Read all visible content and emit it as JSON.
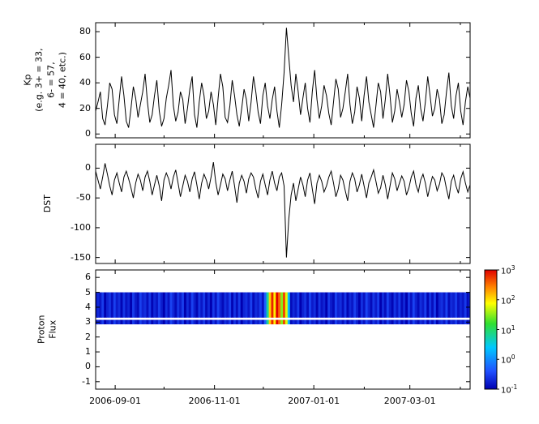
{
  "figure": {
    "background": "#ffffff",
    "axis_color": "#000000",
    "line_color": "#000000",
    "x_axis": {
      "start_day": 0,
      "end_day": 230,
      "start_date": "2006-08-20",
      "end_date": "2007-04-07",
      "tick_days": [
        12,
        73,
        134,
        193
      ],
      "tick_labels": [
        "2006-09-01",
        "2006-11-01",
        "2007-01-01",
        "2007-03-01"
      ],
      "minor_tick_days": [
        42,
        103,
        165,
        224
      ]
    },
    "colormap": {
      "name": "rainbow-jet",
      "stops": [
        [
          0,
          "#0000b0"
        ],
        [
          0.15,
          "#2050ff"
        ],
        [
          0.35,
          "#00c8ff"
        ],
        [
          0.55,
          "#30e030"
        ],
        [
          0.72,
          "#ffff00"
        ],
        [
          0.86,
          "#ff8000"
        ],
        [
          1,
          "#e00000"
        ]
      ]
    }
  },
  "chart_data": [
    {
      "type": "line",
      "name": "kp-index",
      "ylabel": "Kp\n(e.g. 3+ = 33,\n6- = 57,\n4 = 40, etc.)",
      "ylim": [
        -3,
        87
      ],
      "yticks": [
        0,
        20,
        40,
        60,
        80
      ],
      "x_start_day": 0,
      "x_end_day": 230,
      "annotations": {
        "peak_value": 83,
        "peak_date": "2006-12-15"
      },
      "values": [
        18,
        25,
        33,
        12,
        7,
        22,
        40,
        35,
        15,
        8,
        27,
        45,
        30,
        10,
        5,
        20,
        37,
        28,
        13,
        23,
        33,
        47,
        25,
        9,
        15,
        30,
        42,
        18,
        6,
        12,
        28,
        38,
        50,
        22,
        10,
        17,
        33,
        27,
        8,
        20,
        35,
        45,
        15,
        5,
        25,
        40,
        30,
        12,
        18,
        33,
        23,
        7,
        28,
        47,
        37,
        13,
        9,
        22,
        42,
        30,
        15,
        6,
        20,
        35,
        27,
        10,
        25,
        45,
        33,
        17,
        8,
        30,
        40,
        22,
        12,
        27,
        37,
        18,
        5,
        23,
        48,
        83,
        60,
        38,
        25,
        47,
        33,
        15,
        28,
        40,
        20,
        9,
        33,
        50,
        27,
        12,
        22,
        38,
        30,
        16,
        7,
        25,
        43,
        35,
        13,
        20,
        33,
        47,
        23,
        8,
        17,
        37,
        28,
        10,
        30,
        45,
        25,
        15,
        5,
        22,
        40,
        33,
        12,
        27,
        47,
        30,
        9,
        18,
        35,
        25,
        13,
        23,
        42,
        33,
        16,
        6,
        28,
        38,
        20,
        10,
        25,
        45,
        30,
        14,
        20,
        35,
        27,
        8,
        15,
        33,
        48,
        22,
        12,
        30,
        40,
        18,
        7,
        25,
        37,
        28
      ]
    },
    {
      "type": "line",
      "name": "dst-index",
      "ylabel": "DST",
      "ylim": [
        -160,
        40
      ],
      "yticks": [
        0,
        -50,
        -100,
        -150
      ],
      "x_start_day": 0,
      "x_end_day": 230,
      "annotations": {
        "min_value": -150,
        "min_date": "2006-12-15"
      },
      "values": [
        -5,
        -20,
        -35,
        -15,
        8,
        -10,
        -30,
        -45,
        -20,
        -8,
        -25,
        -40,
        -15,
        -5,
        -18,
        -33,
        -50,
        -25,
        -10,
        -20,
        -38,
        -15,
        -5,
        -22,
        -45,
        -28,
        -12,
        -30,
        -55,
        -20,
        -8,
        -18,
        -35,
        -15,
        -3,
        -25,
        -48,
        -30,
        -12,
        -22,
        -40,
        -18,
        -6,
        -28,
        -52,
        -25,
        -10,
        -20,
        -35,
        -15,
        10,
        -24,
        -45,
        -28,
        -10,
        -18,
        -38,
        -20,
        -5,
        -30,
        -58,
        -25,
        -12,
        -22,
        -42,
        -18,
        -8,
        -15,
        -35,
        -50,
        -22,
        -10,
        -28,
        -45,
        -20,
        -5,
        -25,
        -38,
        -15,
        -8,
        -30,
        -150,
        -85,
        -45,
        -25,
        -55,
        -35,
        -15,
        -28,
        -48,
        -20,
        -8,
        -35,
        -60,
        -25,
        -12,
        -22,
        -40,
        -30,
        -15,
        -5,
        -25,
        -48,
        -35,
        -12,
        -20,
        -38,
        -55,
        -22,
        -8,
        -18,
        -40,
        -28,
        -10,
        -30,
        -50,
        -25,
        -15,
        -3,
        -22,
        -42,
        -33,
        -12,
        -28,
        -52,
        -30,
        -8,
        -18,
        -38,
        -25,
        -13,
        -22,
        -45,
        -33,
        -15,
        -5,
        -28,
        -40,
        -20,
        -10,
        -25,
        -48,
        -30,
        -14,
        -20,
        -38,
        -27,
        -8,
        -15,
        -35,
        -52,
        -22,
        -12,
        -30,
        -42,
        -18,
        -6,
        -25,
        -40,
        -28
      ]
    },
    {
      "type": "heatmap",
      "name": "proton-flux",
      "ylabel": "Proton Flux",
      "ylim": [
        -1.5,
        6.5
      ],
      "yticks": [
        -1,
        0,
        1,
        2,
        3,
        4,
        5,
        6
      ],
      "x_start_day": 0,
      "x_end_day": 230,
      "bands_y": [
        [
          2.85,
          3.15
        ],
        [
          3.3,
          5.0
        ]
      ],
      "flux_log_range": [
        -1,
        3
      ],
      "annotations": {
        "event_start": "2006-12-04",
        "event_end": "2006-12-17",
        "event_peak_flux": 1000
      },
      "values": [
        0.12,
        0.2,
        0.15,
        0.28,
        0.1,
        0.18,
        0.24,
        0.13,
        0.3,
        0.16,
        0.22,
        0.11,
        0.25,
        0.14,
        0.19,
        0.1,
        0.27,
        0.16,
        0.12,
        0.3,
        0.18,
        0.22,
        0.13,
        0.26,
        0.11,
        0.2,
        0.15,
        0.29,
        0.17,
        0.1,
        0.23,
        0.14,
        0.31,
        0.19,
        0.12,
        0.25,
        0.16,
        0.28,
        0.1,
        0.21,
        0.13,
        0.3,
        0.17,
        0.11,
        0.24,
        0.15,
        0.27,
        0.12,
        0.2,
        0.1,
        0.26,
        0.14,
        0.31,
        0.18,
        0.12,
        0.22,
        0.16,
        0.29,
        0.11,
        0.24,
        0.13,
        0.27,
        0.1,
        0.19,
        0.23,
        0.15,
        0.3,
        0.12,
        0.21,
        0.17,
        0.28,
        0.14,
        0.5,
        6,
        120,
        700,
        90,
        1000,
        350,
        30,
        500,
        60,
        2,
        0.12,
        0.2,
        0.15,
        0.28,
        0.1,
        0.18,
        0.24,
        0.13,
        0.3,
        0.16,
        0.22,
        0.11,
        0.25,
        0.14,
        0.19,
        0.1,
        0.27,
        0.16,
        0.12,
        0.3,
        0.18,
        0.22,
        0.13,
        0.26,
        0.11,
        0.2,
        0.15,
        0.29,
        0.17,
        0.1,
        0.23,
        0.14,
        0.31,
        0.19,
        0.12,
        0.25,
        0.16,
        0.28,
        0.1,
        0.21,
        0.13,
        0.3,
        0.17,
        0.11,
        0.24,
        0.15,
        0.27,
        0.12,
        0.2,
        0.1,
        0.26,
        0.14,
        0.31,
        0.18,
        0.12,
        0.22,
        0.16,
        0.29,
        0.11,
        0.24,
        0.13,
        0.27,
        0.1,
        0.19,
        0.23,
        0.15,
        0.3,
        0.12,
        0.21,
        0.17,
        0.28,
        0.14,
        0.2,
        0.15,
        0.27,
        0.12,
        0.23
      ],
      "colorbar": {
        "tick_labels": [
          "10^3",
          "10^2",
          "10^1",
          "10^0",
          "10^-1"
        ],
        "tick_values": [
          1000,
          100,
          10,
          1,
          0.1
        ]
      }
    }
  ]
}
